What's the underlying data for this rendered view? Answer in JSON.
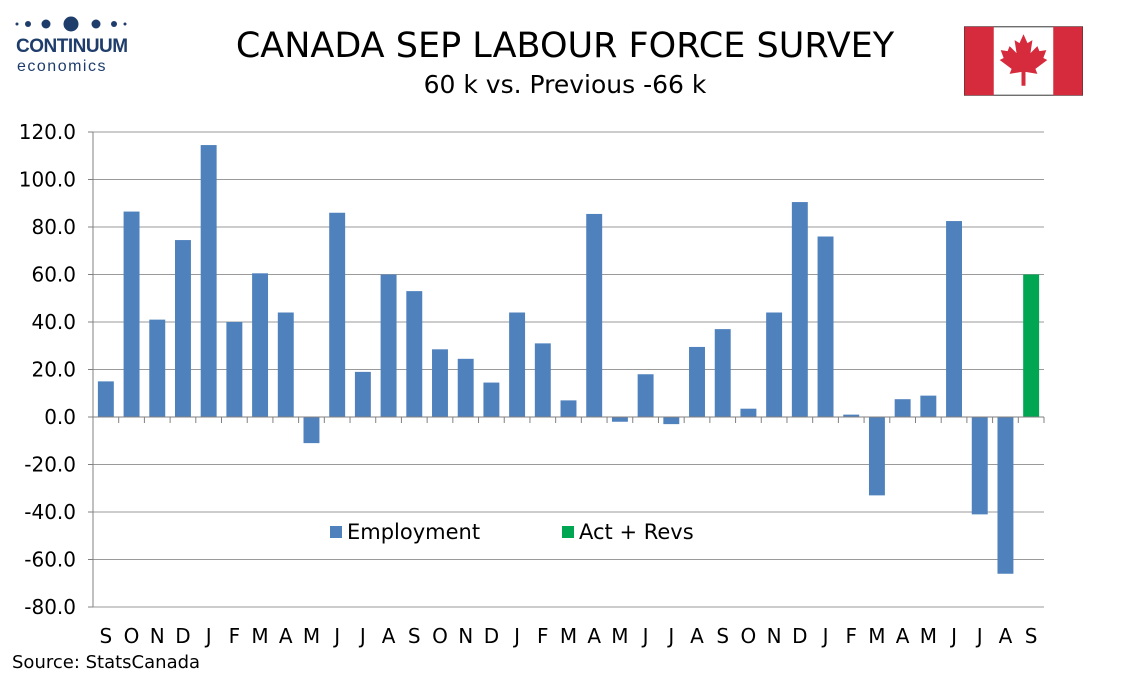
{
  "header": {
    "logo_brand": "CONTINUUM",
    "logo_sub": "economics",
    "title": "CANADA SEP LABOUR FORCE SURVEY",
    "subtitle": "60 k vs.  Previous -66 k"
  },
  "source": "Source: StatsCanada",
  "colors": {
    "employment": "#4f81bd",
    "act_revs": "#00a651",
    "flag_red": "#d52b3c",
    "grid": "#9a9a9a",
    "logo": "#1f3d6b"
  },
  "chart_data": {
    "type": "bar",
    "title": "CANADA SEP LABOUR FORCE SURVEY",
    "xlabel": "",
    "ylabel": "",
    "ylim": [
      -80,
      120
    ],
    "yticks": [
      -80,
      -60,
      -40,
      -20,
      0,
      20,
      40,
      60,
      80,
      100,
      120
    ],
    "ytick_labels": [
      "-80.0",
      "-60.0",
      "-40.0",
      "-20.0",
      "0.0",
      "20.0",
      "40.0",
      "60.0",
      "80.0",
      "100.0",
      "120.0"
    ],
    "grid": true,
    "legend_position": "lower-center",
    "categories": [
      "S",
      "O",
      "N",
      "D",
      "J",
      "F",
      "M",
      "A",
      "M",
      "J",
      "J",
      "A",
      "S",
      "O",
      "N",
      "D",
      "J",
      "F",
      "M",
      "A",
      "M",
      "J",
      "J",
      "A",
      "S",
      "O",
      "N",
      "D",
      "J",
      "F",
      "M",
      "A",
      "M",
      "J",
      "J",
      "A",
      "S"
    ],
    "series": [
      {
        "name": "Employment",
        "values": [
          15,
          86.5,
          41,
          74.5,
          114.5,
          40,
          60.5,
          44,
          -11,
          86,
          19,
          60,
          53,
          28.5,
          24.5,
          14.5,
          44,
          31,
          7,
          85.5,
          -2,
          18,
          -3,
          29.5,
          37,
          3.5,
          44,
          90.5,
          76,
          1,
          -33,
          7.5,
          9,
          82.5,
          -41,
          -66,
          null
        ]
      },
      {
        "name": "Act + Revs",
        "values": [
          null,
          null,
          null,
          null,
          null,
          null,
          null,
          null,
          null,
          null,
          null,
          null,
          null,
          null,
          null,
          null,
          null,
          null,
          null,
          null,
          null,
          null,
          null,
          null,
          null,
          null,
          null,
          null,
          null,
          null,
          null,
          null,
          null,
          null,
          null,
          null,
          60
        ]
      }
    ]
  }
}
